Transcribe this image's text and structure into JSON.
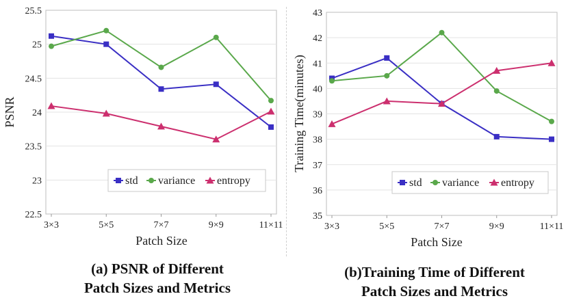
{
  "chart_data": [
    {
      "type": "line",
      "categories": [
        "3×3",
        "5×5",
        "7×7",
        "9×9",
        "11×11"
      ],
      "series": [
        {
          "name": "std",
          "values": [
            25.12,
            25.0,
            24.34,
            24.41,
            23.78
          ],
          "color": "#3a2fc4",
          "marker": "square"
        },
        {
          "name": "variance",
          "values": [
            24.97,
            25.2,
            24.66,
            25.1,
            24.17
          ],
          "color": "#5aa84b",
          "marker": "circle"
        },
        {
          "name": "entropy",
          "values": [
            24.09,
            23.98,
            23.79,
            23.6,
            24.01
          ],
          "color": "#cc2f6e",
          "marker": "triangle"
        }
      ],
      "xlabel": "Patch Size",
      "ylabel": "PSNR",
      "ylim": [
        22.5,
        25.5
      ],
      "yticks": [
        "22.5",
        "23",
        "23.5",
        "24",
        "24.5",
        "25",
        "25.5"
      ],
      "ytick_values": [
        22.5,
        23,
        23.5,
        24,
        24.5,
        25,
        25.5
      ],
      "legend_position": "bottom-right",
      "caption": [
        "(a) PSNR of Different",
        "Patch Sizes and Metrics"
      ]
    },
    {
      "type": "line",
      "categories": [
        "3×3",
        "5×5",
        "7×7",
        "9×9",
        "11×11"
      ],
      "series": [
        {
          "name": "std",
          "values": [
            40.4,
            41.2,
            39.4,
            38.1,
            38.0
          ],
          "color": "#3a2fc4",
          "marker": "square"
        },
        {
          "name": "variance",
          "values": [
            40.3,
            40.5,
            42.2,
            39.9,
            38.7
          ],
          "color": "#5aa84b",
          "marker": "circle"
        },
        {
          "name": "entropy",
          "values": [
            38.6,
            39.5,
            39.4,
            40.7,
            41.0
          ],
          "color": "#cc2f6e",
          "marker": "triangle"
        }
      ],
      "xlabel": "Patch Size",
      "ylabel": "Training Time(minutes)",
      "ylim": [
        35,
        43
      ],
      "yticks": [
        "35",
        "36",
        "37",
        "38",
        "39",
        "40",
        "41",
        "42",
        "43"
      ],
      "ytick_values": [
        35,
        36,
        37,
        38,
        39,
        40,
        41,
        42,
        43
      ],
      "legend_position": "bottom-right",
      "caption": [
        "(b)Training Time of Different",
        "Patch Sizes and Metrics"
      ]
    }
  ]
}
